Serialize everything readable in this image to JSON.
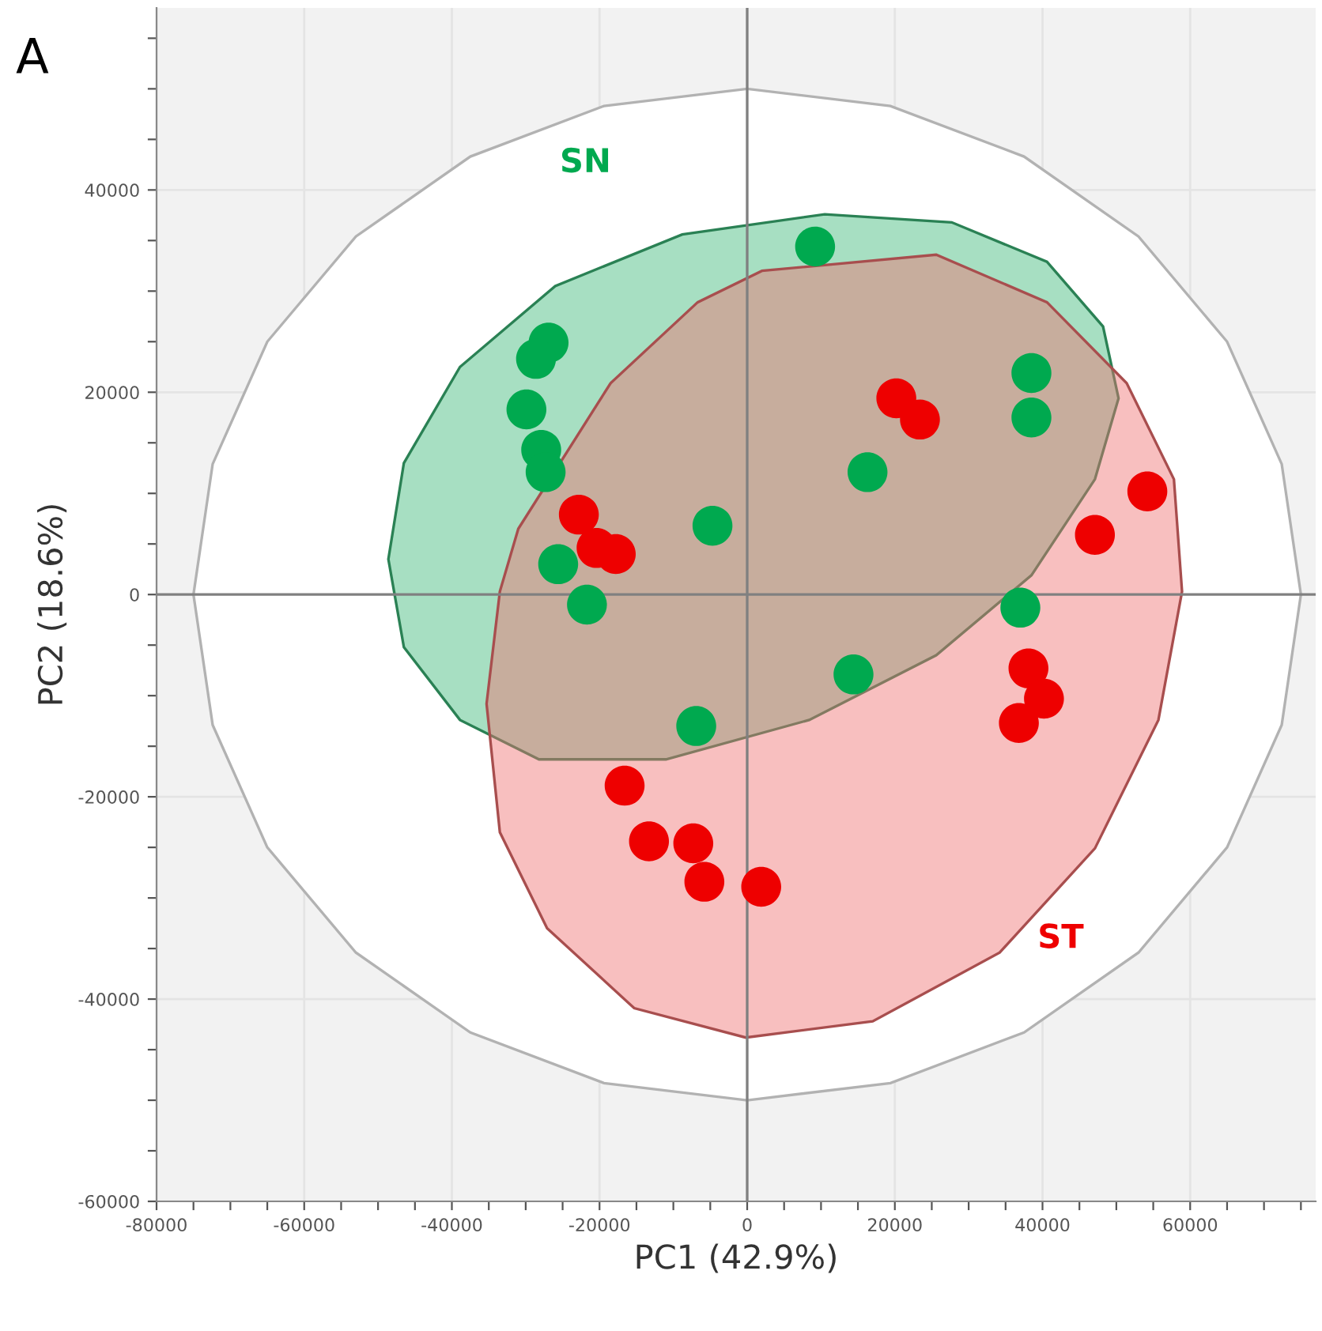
{
  "chart_data": {
    "type": "scatter",
    "xlabel": "PC1 (42.9%)",
    "ylabel": "PC2 (18.6%)",
    "annotations": [
      "A"
    ],
    "xlim": [
      -80000,
      77000
    ],
    "ylim": [
      -60000,
      58000
    ],
    "xticks": [
      -80000,
      {
        "value": -75000,
        "label": null
      },
      {
        "value": -70000,
        "label": null
      },
      {
        "value": -65000,
        "label": null
      },
      -60000,
      {
        "value": -55000,
        "label": null
      },
      {
        "value": -50000,
        "label": null
      },
      {
        "value": -45000,
        "label": null
      },
      -40000,
      {
        "value": -35000,
        "label": null
      },
      {
        "value": -30000,
        "label": null
      },
      {
        "value": -25000,
        "label": null
      },
      -20000,
      {
        "value": -15000,
        "label": null
      },
      {
        "value": -10000,
        "label": null
      },
      {
        "value": -5000,
        "label": null
      },
      0,
      {
        "value": 5000,
        "label": null
      },
      {
        "value": 10000,
        "label": null
      },
      {
        "value": 15000,
        "label": null
      },
      20000,
      {
        "value": 25000,
        "label": null
      },
      {
        "value": 30000,
        "label": null
      },
      {
        "value": 35000,
        "label": null
      },
      40000,
      {
        "value": 45000,
        "label": null
      },
      {
        "value": 50000,
        "label": null
      },
      {
        "value": 55000,
        "label": null
      },
      60000,
      {
        "value": 65000,
        "label": null
      },
      {
        "value": 70000,
        "label": null
      },
      {
        "value": 75000,
        "label": null
      }
    ],
    "yticks": [
      -60000,
      {
        "value": -55000,
        "label": null
      },
      {
        "value": -50000,
        "label": null
      },
      {
        "value": -45000,
        "label": null
      },
      -40000,
      {
        "value": -35000,
        "label": null
      },
      {
        "value": -30000,
        "label": null
      },
      {
        "value": -25000,
        "label": null
      },
      -20000,
      {
        "value": -15000,
        "label": null
      },
      {
        "value": -10000,
        "label": null
      },
      {
        "value": -5000,
        "label": null
      },
      0,
      {
        "value": 5000,
        "label": null
      },
      {
        "value": 10000,
        "label": null
      },
      {
        "value": 15000,
        "label": null
      },
      20000,
      {
        "value": 25000,
        "label": null
      },
      {
        "value": 30000,
        "label": null
      },
      {
        "value": 35000,
        "label": null
      },
      40000,
      {
        "value": 45000,
        "label": null
      },
      {
        "value": 50000,
        "label": null
      },
      {
        "value": 55000,
        "label": null
      }
    ],
    "grid": true,
    "legend": false,
    "marker": "circle",
    "series": [
      {
        "type": "area",
        "color": "#ffffff",
        "marker": "none",
        "x": [
          -75000,
          -72400,
          -65000,
          -53000,
          -37500,
          -19400,
          0,
          19400,
          37500,
          53000,
          65000,
          72400,
          75000,
          72400,
          65000,
          53000,
          37500,
          19400,
          0,
          -19400,
          -37500,
          -53000,
          -65000,
          -72400
        ],
        "values": [
          0,
          12900,
          25000,
          35400,
          43300,
          48300,
          50000,
          48300,
          43300,
          35400,
          25000,
          12900,
          0,
          -12900,
          -25000,
          -35400,
          -43300,
          -48300,
          -50000,
          -48300,
          -43300,
          -35400,
          -25000,
          -12900
        ]
      },
      {
        "type": "area",
        "color": "#3cb878",
        "marker": "none",
        "x": [
          -48600,
          -46500,
          -38900,
          -26000,
          -8800,
          10500,
          27700,
          40600,
          48200,
          50300,
          47100,
          38500,
          25600,
          8400,
          -11000,
          -28200,
          -38900,
          -46500
        ],
        "values": [
          3500,
          13000,
          22500,
          30500,
          35600,
          37600,
          36800,
          32900,
          26500,
          19400,
          11400,
          1900,
          -6000,
          -12400,
          -16300,
          -16300,
          -12400,
          -5200
        ]
      },
      {
        "type": "area",
        "color": "#f07070",
        "marker": "none",
        "x": [
          -35300,
          -33500,
          -31000,
          -18500,
          -6700,
          2000,
          25600,
          40600,
          51400,
          57800,
          58900,
          55700,
          47100,
          34200,
          17000,
          -200,
          -15300,
          -27100,
          -33500
        ],
        "values": [
          -10800,
          300,
          6500,
          20900,
          28900,
          32000,
          33600,
          28900,
          20900,
          11400,
          300,
          -12400,
          -25100,
          -35400,
          -42200,
          -43800,
          -40900,
          -33000,
          -23500
        ]
      },
      {
        "name": "SN",
        "color": "#00a94f",
        "x": [
          9200,
          -26900,
          -28600,
          -29900,
          -27900,
          -27300,
          -25600,
          -21700,
          -4700,
          16300,
          38500,
          38500,
          37000,
          14400,
          -6900
        ],
        "values": [
          34400,
          24900,
          23300,
          18300,
          14300,
          12100,
          3000,
          -1000,
          6800,
          12100,
          21900,
          17500,
          -1300,
          -7900,
          -13000
        ]
      },
      {
        "name": "ST",
        "color": "#ee0000",
        "x": [
          -22800,
          -20400,
          -17800,
          20200,
          23400,
          47100,
          54200,
          38100,
          40200,
          36800,
          -16600,
          -13300,
          -7300,
          -5800,
          1900
        ],
        "values": [
          7900,
          4600,
          4000,
          19400,
          17300,
          5900,
          10200,
          -7300,
          -10300,
          -12700,
          -18900,
          -24400,
          -24600,
          -28400,
          -28900
        ]
      }
    ]
  }
}
